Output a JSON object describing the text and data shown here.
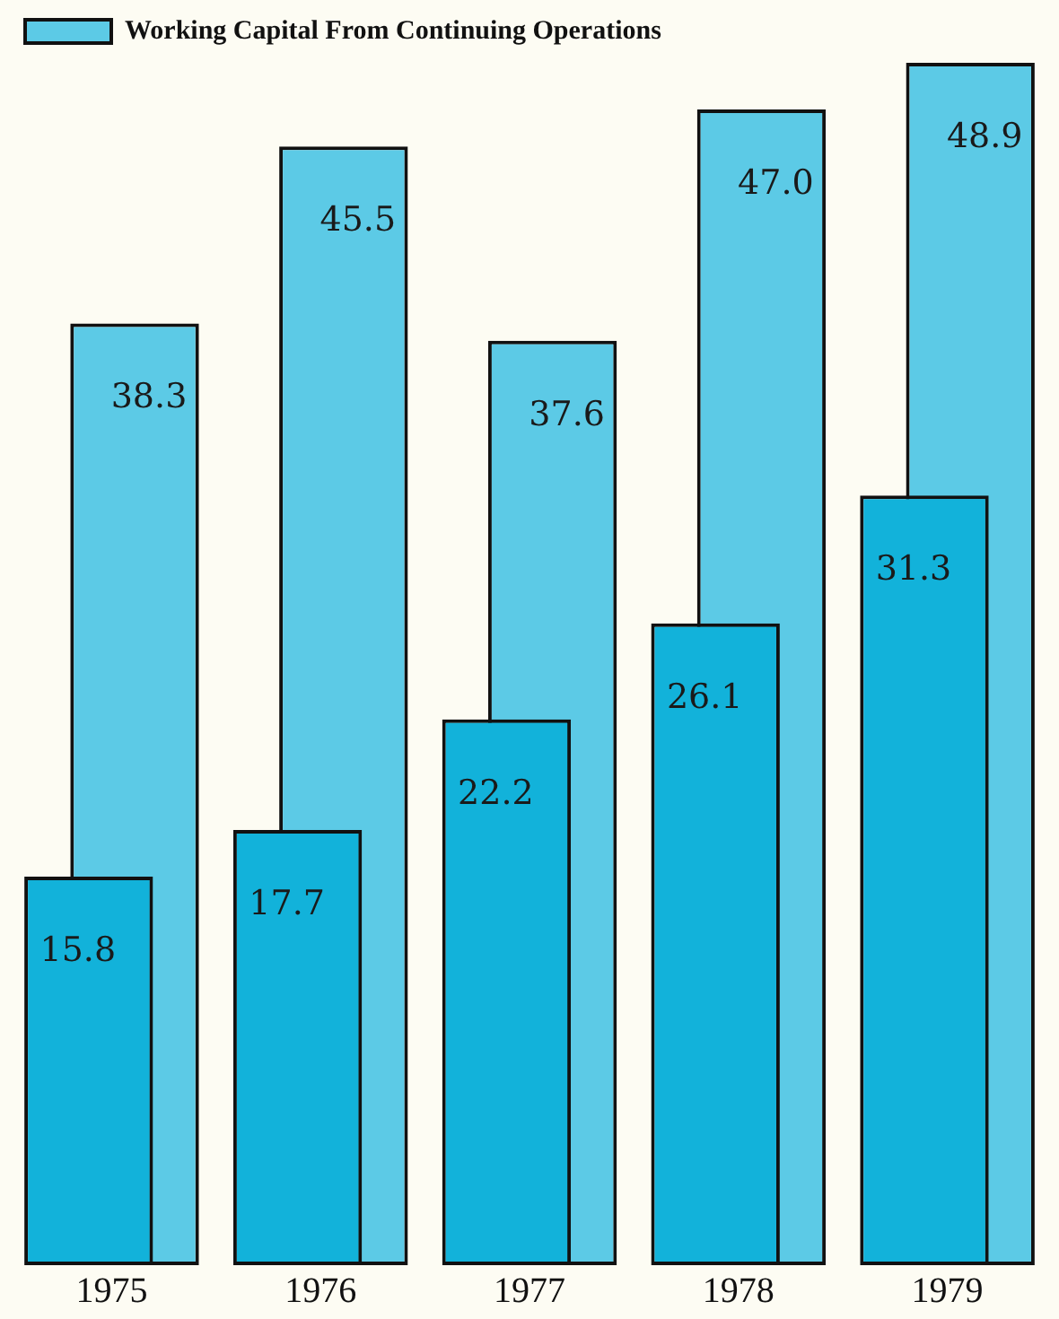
{
  "chart_data": {
    "type": "bar",
    "categories": [
      "1975",
      "1976",
      "1977",
      "1978",
      "1979"
    ],
    "series": [
      {
        "color": "#12b2da",
        "values": [
          15.8,
          17.7,
          22.2,
          26.1,
          31.3
        ],
        "value_labels": [
          "15.8",
          "17.7",
          "22.2",
          "26.1",
          "31.3"
        ]
      },
      {
        "name": "Working Capital From Continuing Operations",
        "color": "#5ccae6",
        "values": [
          38.3,
          45.5,
          37.6,
          47.0,
          48.9
        ],
        "value_labels": [
          "38.3",
          "45.5",
          "37.6",
          "47.0",
          "48.9"
        ]
      }
    ],
    "grid": false,
    "legend": "top left",
    "tick_labels": "x"
  }
}
